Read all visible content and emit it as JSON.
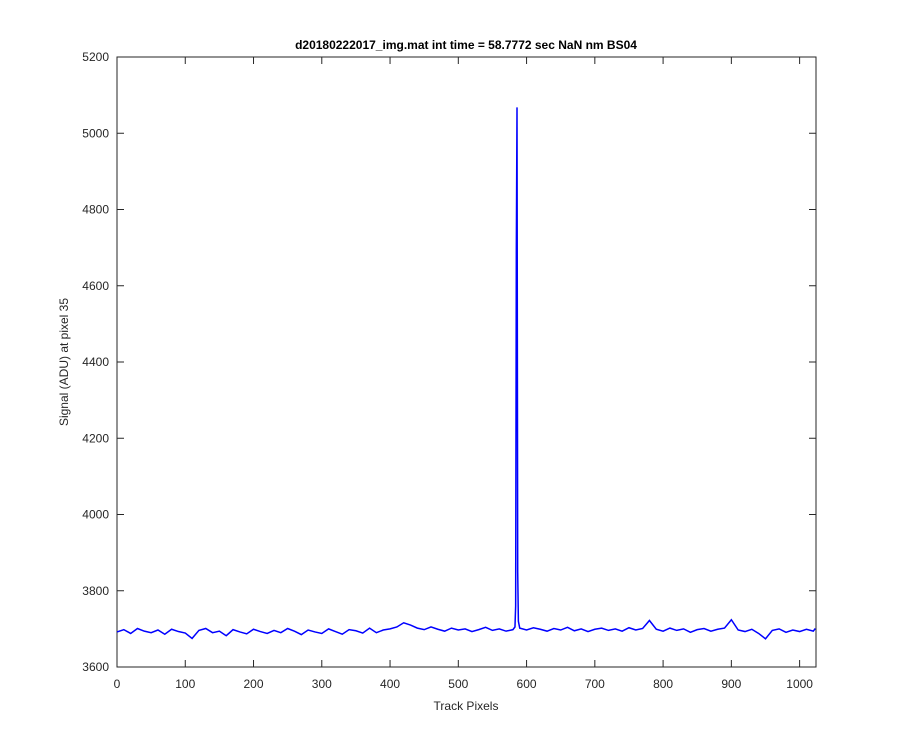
{
  "chart_data": {
    "type": "line",
    "title": "d20180222017_img.mat int time = 58.7772 sec  NaN nm BS04",
    "x_label": "Track Pixels",
    "y_label": "Signal (ADU) at pixel 35",
    "x": [
      0,
      10,
      20,
      30,
      40,
      50,
      60,
      70,
      80,
      90,
      100,
      110,
      120,
      130,
      140,
      150,
      160,
      170,
      180,
      190,
      200,
      210,
      220,
      230,
      240,
      250,
      260,
      270,
      280,
      290,
      300,
      310,
      320,
      330,
      340,
      350,
      360,
      370,
      380,
      390,
      400,
      410,
      420,
      430,
      440,
      450,
      460,
      470,
      480,
      490,
      500,
      510,
      520,
      530,
      540,
      550,
      560,
      570,
      580,
      583,
      584,
      585,
      586,
      587,
      588,
      590,
      600,
      610,
      620,
      630,
      640,
      650,
      660,
      670,
      680,
      690,
      700,
      710,
      720,
      730,
      740,
      750,
      760,
      770,
      780,
      790,
      800,
      810,
      820,
      830,
      840,
      850,
      860,
      870,
      880,
      890,
      900,
      910,
      920,
      930,
      940,
      950,
      960,
      970,
      980,
      990,
      1000,
      1010,
      1020,
      1023
    ],
    "series": [
      {
        "name": "signal",
        "color": "#0000ff",
        "values": [
          3692,
          3698,
          3688,
          3701,
          3694,
          3690,
          3697,
          3686,
          3699,
          3693,
          3689,
          3675,
          3696,
          3701,
          3690,
          3694,
          3682,
          3698,
          3692,
          3687,
          3699,
          3693,
          3688,
          3696,
          3690,
          3701,
          3694,
          3685,
          3697,
          3692,
          3688,
          3700,
          3693,
          3686,
          3698,
          3695,
          3689,
          3702,
          3690,
          3697,
          3700,
          3705,
          3716,
          3710,
          3702,
          3698,
          3705,
          3699,
          3694,
          3702,
          3697,
          3700,
          3693,
          3698,
          3704,
          3696,
          3700,
          3694,
          3698,
          3705,
          3760,
          4700,
          5068,
          3850,
          3720,
          3702,
          3697,
          3703,
          3699,
          3694,
          3701,
          3697,
          3704,
          3695,
          3700,
          3693,
          3699,
          3702,
          3696,
          3700,
          3694,
          3703,
          3697,
          3701,
          3722,
          3699,
          3694,
          3702,
          3696,
          3700,
          3691,
          3698,
          3701,
          3694,
          3699,
          3702,
          3724,
          3697,
          3693,
          3699,
          3688,
          3674,
          3696,
          3700,
          3691,
          3697,
          3693,
          3699,
          3694,
          3701
        ]
      }
    ],
    "xlim": [
      0,
      1024
    ],
    "ylim": [
      3600,
      5200
    ],
    "xticks": [
      0,
      100,
      200,
      300,
      400,
      500,
      600,
      700,
      800,
      900,
      1000
    ],
    "yticks": [
      3600,
      3800,
      4000,
      4200,
      4400,
      4600,
      4800,
      5000,
      5200
    ]
  }
}
